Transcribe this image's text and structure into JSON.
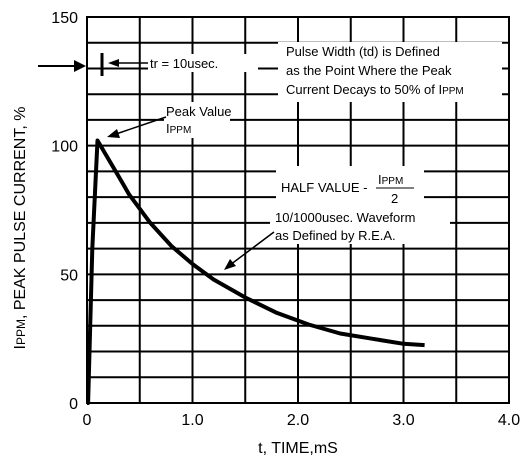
{
  "chart_data": {
    "type": "line",
    "xlabel": "t, TIME,mS",
    "ylabel_main": "I",
    "ylabel_sub": "PPM",
    "ylabel_rest": ", PEAK PULSE CURRENT, %",
    "xlim": [
      0,
      4
    ],
    "ylim": [
      0,
      150
    ],
    "x_ticks": [
      {
        "value": 0,
        "label": "0"
      },
      {
        "value": 1,
        "label": "1.0"
      },
      {
        "value": 2,
        "label": "2.0"
      },
      {
        "value": 3,
        "label": "3.0"
      },
      {
        "value": 4,
        "label": "4.0"
      }
    ],
    "y_ticks": [
      {
        "value": 0,
        "label": "0"
      },
      {
        "value": 50,
        "label": "50"
      },
      {
        "value": 100,
        "label": "100"
      },
      {
        "value": 150,
        "label": "150"
      }
    ],
    "grid": true,
    "grid_x_step": 0.5,
    "grid_y_step": 10,
    "series": [
      {
        "x": [
          0,
          0.01,
          0.05,
          0.1,
          0.2,
          0.3,
          0.4,
          0.6,
          0.8,
          1.0,
          1.2,
          1.5,
          1.8,
          2.1,
          2.4,
          2.7,
          3.0,
          3.2
        ],
        "y": [
          0,
          0,
          60,
          102,
          95,
          88,
          81,
          70,
          61,
          54,
          48,
          41,
          35,
          30.5,
          27,
          25,
          23,
          22.5
        ]
      }
    ],
    "annotations": {
      "tr": "tr = 10usec.",
      "pulse_width": [
        "Pulse Width (td) is Defined",
        "as the Point Where the Peak",
        "Current Decays to 50% of I"
      ],
      "pulse_width_sub": "PPM",
      "peak_label": [
        "Peak Value",
        "I"
      ],
      "peak_label_sub": "PPM",
      "half_value_prefix": "HALF VALUE -",
      "half_value_num_main": "I",
      "half_value_num_sub": "PPM",
      "half_value_den": "2",
      "waveform": [
        "10/1000usec. Waveform",
        "as Defined by R.E.A."
      ]
    }
  }
}
